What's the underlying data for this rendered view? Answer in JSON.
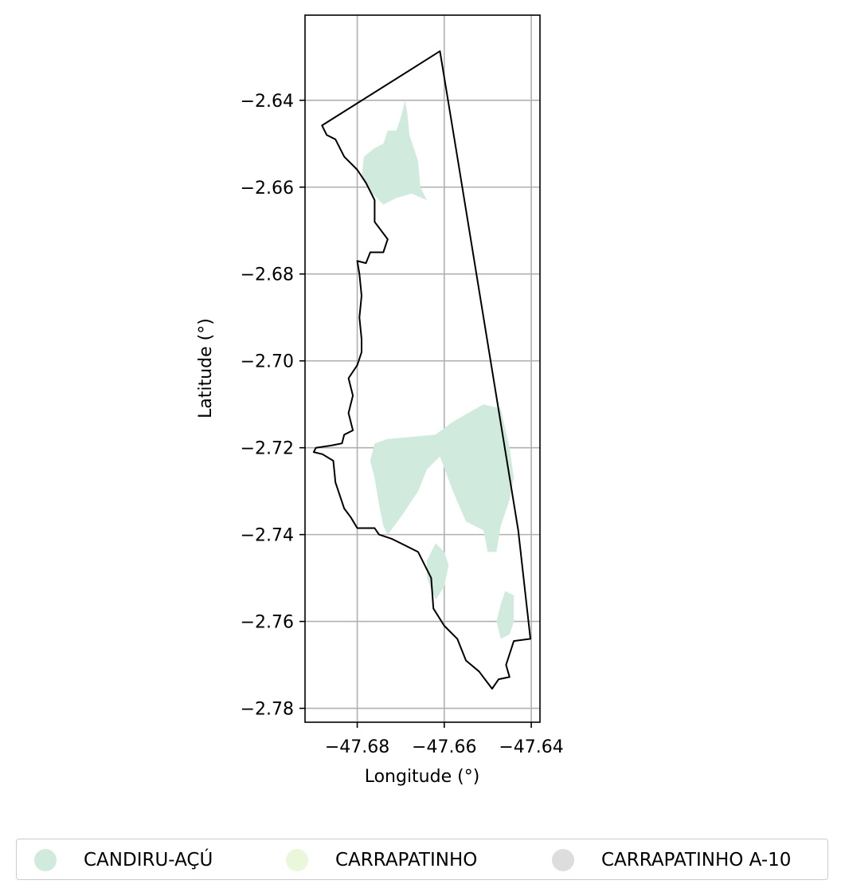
{
  "chart_data": {
    "type": "map",
    "xlabel": "Longitude (°)",
    "ylabel": "Latitude (°)",
    "xlim": [
      -47.692,
      -47.638
    ],
    "ylim": [
      -2.7832,
      -2.6204
    ],
    "x_ticks": [
      -47.68,
      -47.66,
      -47.64
    ],
    "x_tick_labels": [
      "−47.68",
      "−47.66",
      "−47.64"
    ],
    "y_ticks": [
      -2.64,
      -2.66,
      -2.68,
      -2.7,
      -2.72,
      -2.74,
      -2.76,
      -2.78
    ],
    "y_tick_labels": [
      "−2.64",
      "−2.66",
      "−2.68",
      "−2.70",
      "−2.72",
      "−2.74",
      "−2.76",
      "−2.78"
    ],
    "grid": true,
    "boundary": [
      [
        -47.6881,
        -2.6458
      ],
      [
        -47.661,
        -2.6287
      ],
      [
        -47.657,
        -2.653
      ],
      [
        -47.643,
        -2.739
      ],
      [
        -47.6402,
        -2.764
      ],
      [
        -47.644,
        -2.7645
      ],
      [
        -47.6458,
        -2.77
      ],
      [
        -47.645,
        -2.7728
      ],
      [
        -47.6475,
        -2.7733
      ],
      [
        -47.649,
        -2.7755
      ],
      [
        -47.652,
        -2.7715
      ],
      [
        -47.655,
        -2.769
      ],
      [
        -47.657,
        -2.764
      ],
      [
        -47.66,
        -2.761
      ],
      [
        -47.6625,
        -2.757
      ],
      [
        -47.663,
        -2.75
      ],
      [
        -47.666,
        -2.744
      ],
      [
        -47.67,
        -2.742
      ],
      [
        -47.672,
        -2.741
      ],
      [
        -47.675,
        -2.74
      ],
      [
        -47.676,
        -2.7385
      ],
      [
        -47.68,
        -2.7385
      ],
      [
        -47.6815,
        -2.736
      ],
      [
        -47.683,
        -2.734
      ],
      [
        -47.685,
        -2.728
      ],
      [
        -47.6855,
        -2.723
      ],
      [
        -47.688,
        -2.7215
      ],
      [
        -47.69,
        -2.721
      ],
      [
        -47.6895,
        -2.72
      ],
      [
        -47.686,
        -2.7195
      ],
      [
        -47.6835,
        -2.719
      ],
      [
        -47.683,
        -2.717
      ],
      [
        -47.681,
        -2.716
      ],
      [
        -47.682,
        -2.712
      ],
      [
        -47.681,
        -2.708
      ],
      [
        -47.682,
        -2.704
      ],
      [
        -47.68,
        -2.701
      ],
      [
        -47.679,
        -2.698
      ],
      [
        -47.679,
        -2.695
      ],
      [
        -47.6795,
        -2.69
      ],
      [
        -47.679,
        -2.685
      ],
      [
        -47.6795,
        -2.68
      ],
      [
        -47.68,
        -2.677
      ],
      [
        -47.678,
        -2.6775
      ],
      [
        -47.677,
        -2.675
      ],
      [
        -47.674,
        -2.675
      ],
      [
        -47.673,
        -2.672
      ],
      [
        -47.676,
        -2.668
      ],
      [
        -47.676,
        -2.663
      ],
      [
        -47.678,
        -2.659
      ],
      [
        -47.68,
        -2.656
      ],
      [
        -47.683,
        -2.653
      ],
      [
        -47.685,
        -2.649
      ],
      [
        -47.687,
        -2.648
      ],
      [
        -47.6881,
        -2.6458
      ]
    ],
    "series": [
      {
        "name": "CANDIRU-AÇÚ",
        "color": "#d0ebde",
        "polygons": [
          [
            [
              -47.669,
              -2.64
            ],
            [
              -47.6685,
              -2.643
            ],
            [
              -47.668,
              -2.648
            ],
            [
              -47.666,
              -2.654
            ],
            [
              -47.6655,
              -2.66
            ],
            [
              -47.664,
              -2.663
            ],
            [
              -47.6675,
              -2.6615
            ],
            [
              -47.671,
              -2.6625
            ],
            [
              -47.674,
              -2.664
            ],
            [
              -47.677,
              -2.661
            ],
            [
              -47.679,
              -2.658
            ],
            [
              -47.6785,
              -2.653
            ],
            [
              -47.676,
              -2.651
            ],
            [
              -47.674,
              -2.65
            ],
            [
              -47.673,
              -2.647
            ],
            [
              -47.671,
              -2.647
            ],
            [
              -47.67,
              -2.644
            ],
            [
              -47.669,
              -2.64
            ]
          ],
          [
            [
              -47.673,
              -2.718
            ],
            [
              -47.662,
              -2.717
            ],
            [
              -47.658,
              -2.714
            ],
            [
              -47.651,
              -2.71
            ],
            [
              -47.647,
              -2.711
            ],
            [
              -47.645,
              -2.72
            ],
            [
              -47.644,
              -2.727
            ],
            [
              -47.645,
              -2.732
            ],
            [
              -47.647,
              -2.738
            ],
            [
              -47.648,
              -2.744
            ],
            [
              -47.65,
              -2.744
            ],
            [
              -47.651,
              -2.739
            ],
            [
              -47.655,
              -2.737
            ],
            [
              -47.658,
              -2.73
            ],
            [
              -47.661,
              -2.722
            ],
            [
              -47.664,
              -2.725
            ],
            [
              -47.666,
              -2.73
            ],
            [
              -47.67,
              -2.736
            ],
            [
              -47.673,
              -2.74
            ],
            [
              -47.674,
              -2.738
            ],
            [
              -47.675,
              -2.733
            ],
            [
              -47.676,
              -2.727
            ],
            [
              -47.677,
              -2.723
            ],
            [
              -47.676,
              -2.719
            ],
            [
              -47.673,
              -2.718
            ]
          ],
          [
            [
              -47.662,
              -2.742
            ],
            [
              -47.66,
              -2.744
            ],
            [
              -47.659,
              -2.747
            ],
            [
              -47.66,
              -2.752
            ],
            [
              -47.662,
              -2.755
            ],
            [
              -47.664,
              -2.75
            ],
            [
              -47.664,
              -2.746
            ],
            [
              -47.662,
              -2.742
            ]
          ],
          [
            [
              -47.646,
              -2.753
            ],
            [
              -47.644,
              -2.754
            ],
            [
              -47.644,
              -2.76
            ],
            [
              -47.645,
              -2.763
            ],
            [
              -47.647,
              -2.764
            ],
            [
              -47.648,
              -2.76
            ],
            [
              -47.647,
              -2.756
            ],
            [
              -47.646,
              -2.753
            ]
          ],
          [
            [
              -47.686,
              -2.725
            ],
            [
              -47.685,
              -2.73
            ],
            [
              -47.684,
              -2.735
            ],
            [
              -47.685,
              -2.73
            ],
            [
              -47.686,
              -2.725
            ]
          ]
        ]
      },
      {
        "name": "CARRAPATINHO",
        "color": "#ebf7da",
        "polygons": []
      },
      {
        "name": "CARRAPATINHO A-10",
        "color": "#dddddd",
        "polygons": []
      }
    ]
  },
  "legend": {
    "items": [
      {
        "label": "CANDIRU-AÇÚ",
        "color": "#d0ebde"
      },
      {
        "label": "CARRAPATINHO",
        "color": "#ebf7da"
      },
      {
        "label": "CARRAPATINHO A-10",
        "color": "#dddddd"
      }
    ]
  }
}
